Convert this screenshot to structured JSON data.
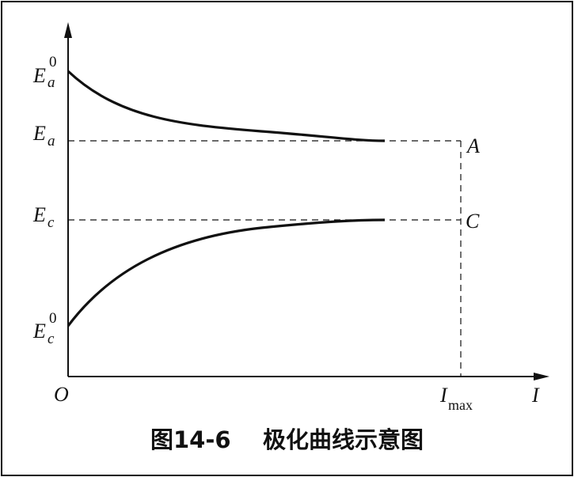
{
  "caption": "图14-6    极化曲线示意图",
  "axes": {
    "origin": "O",
    "x_label": "I",
    "x_tick": {
      "main": "I",
      "sub": "max"
    },
    "y_labels": [
      {
        "key": "Ea0",
        "main": "E",
        "sub": "a",
        "sup": "0"
      },
      {
        "key": "Ea",
        "main": "E",
        "sub": "a"
      },
      {
        "key": "Ec",
        "main": "E",
        "sub": "c"
      },
      {
        "key": "Ec0",
        "main": "E",
        "sub": "c",
        "sup": "0"
      }
    ]
  },
  "points": {
    "A": "A",
    "C": "C"
  },
  "curves": [
    {
      "name": "anodic-polarization-curve"
    },
    {
      "name": "cathodic-polarization-curve"
    }
  ],
  "colors": {
    "ink": "#111111",
    "background": "#ffffff"
  }
}
